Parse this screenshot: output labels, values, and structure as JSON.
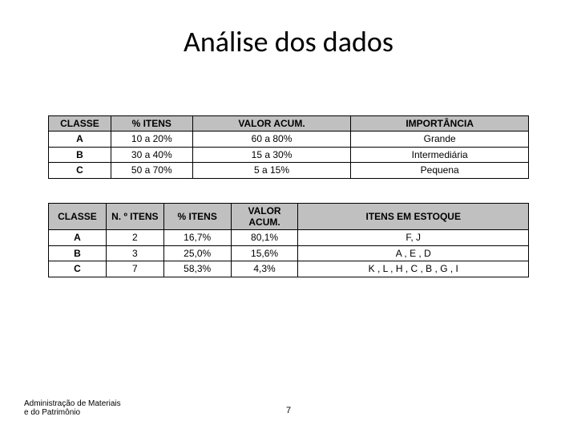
{
  "title": "Análise dos dados",
  "table1": {
    "headers": [
      "CLASSE",
      "%  ITENS",
      "VALOR ACUM.",
      "IMPORTÂNCIA"
    ],
    "rows": [
      [
        "A",
        "10 a 20%",
        "60 a 80%",
        "Grande"
      ],
      [
        "B",
        "30 a 40%",
        "15 a 30%",
        "Intermediária"
      ],
      [
        "C",
        "50 a 70%",
        "5 a 15%",
        "Pequena"
      ]
    ]
  },
  "table2": {
    "headers": [
      "CLASSE",
      "N. º ITENS",
      "% ITENS",
      "VALOR ACUM.",
      "ITENS EM ESTOQUE"
    ],
    "rows": [
      [
        "A",
        "2",
        "16,7%",
        "80,1%",
        "F, J"
      ],
      [
        "B",
        "3",
        "25,0%",
        "15,6%",
        "A , E , D"
      ],
      [
        "C",
        "7",
        "58,3%",
        "4,3%",
        "K , L , H , C , B , G , I"
      ]
    ]
  },
  "footer": {
    "left_l1": "Administração de Materiais",
    "left_l2": " e do Patrimônio",
    "page": "7"
  },
  "style": {
    "header_bg": "#c0c0c0",
    "border": "#000000",
    "title_fontsize": 36,
    "table_fontsize": 12,
    "footer_fontsize": 10
  }
}
